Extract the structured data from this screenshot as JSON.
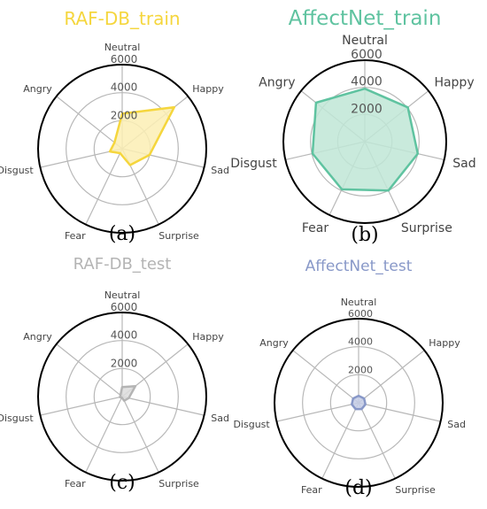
{
  "chart_data": [
    {
      "type": "radar",
      "panel": "(a)",
      "title": "RAF-DB_train",
      "color": "#f5d63d",
      "fill": "#fcefb4",
      "categories": [
        "Neutral",
        "Happy",
        "Sad",
        "Surprise",
        "Fear",
        "Disgust",
        "Angry"
      ],
      "values": [
        2500,
        4750,
        2000,
        1300,
        350,
        900,
        700
      ],
      "rticks": [
        2000,
        4000,
        6000
      ],
      "ylim": [
        0,
        6000
      ]
    },
    {
      "type": "radar",
      "panel": "(b)",
      "title": "AffectNet_train",
      "color": "#5fc3a0",
      "fill": "#bfe6d6",
      "categories": [
        "Neutral",
        "Happy",
        "Sad",
        "Surprise",
        "Fear",
        "Disgust",
        "Angry"
      ],
      "values": [
        3900,
        4050,
        4000,
        4000,
        3900,
        3950,
        4600
      ],
      "rticks": [
        2000,
        4000,
        6000
      ],
      "ylim": [
        0,
        6000
      ]
    },
    {
      "type": "radar",
      "panel": "(c)",
      "title": "RAF-DB_test",
      "color": "#b4b4b4",
      "fill": "#dcdcdc",
      "categories": [
        "Neutral",
        "Happy",
        "Sad",
        "Surprise",
        "Fear",
        "Disgust",
        "Angry"
      ],
      "values": [
        680,
        1200,
        480,
        330,
        75,
        160,
        160
      ],
      "rticks": [
        2000,
        4000,
        6000
      ],
      "ylim": [
        0,
        6000
      ]
    },
    {
      "type": "radar",
      "panel": "(d)",
      "title": "AffectNet_test",
      "color": "#8898c8",
      "fill": "#c4cde6",
      "categories": [
        "Neutral",
        "Happy",
        "Sad",
        "Surprise",
        "Fear",
        "Disgust",
        "Angry"
      ],
      "values": [
        500,
        500,
        500,
        500,
        500,
        500,
        500
      ],
      "rticks": [
        2000,
        4000,
        6000
      ],
      "ylim": [
        0,
        6000
      ]
    }
  ]
}
